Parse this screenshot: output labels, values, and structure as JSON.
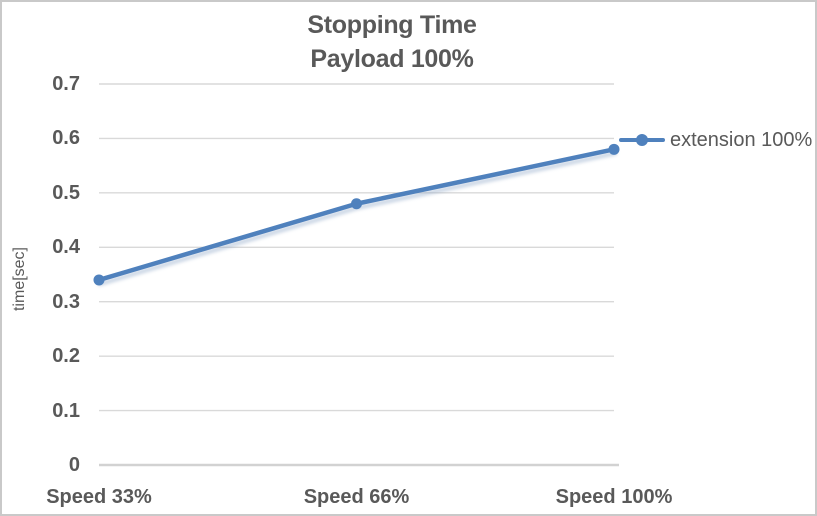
{
  "chart": {
    "title_lines": [
      "Stopping Time",
      "Payload 100%"
    ]
  },
  "chart_data": {
    "type": "line",
    "title": "Stopping Time",
    "subtitle": "Payload 100%",
    "categories": [
      "Speed 33%",
      "Speed 66%",
      "Speed 100%"
    ],
    "series": [
      {
        "name": "extension 100%",
        "values": [
          0.34,
          0.48,
          0.58
        ],
        "color": "#4F81BD"
      }
    ],
    "xlabel": "",
    "ylabel": "time[sec]",
    "ylim": [
      0,
      0.7
    ],
    "ytick_labels": [
      "0",
      "0.1",
      "0.2",
      "0.3",
      "0.4",
      "0.5",
      "0.6",
      "0.7"
    ],
    "grid": true,
    "gridline_color": "#d9d9d9",
    "axis_line_color": "#d2d2d2",
    "text_color": "#595959",
    "legend_position": "right"
  }
}
